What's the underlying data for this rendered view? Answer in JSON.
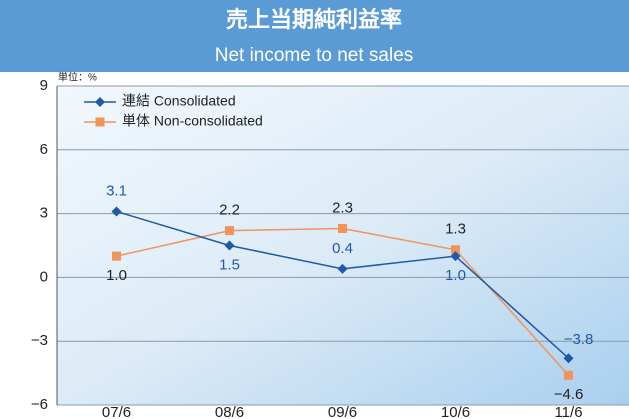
{
  "chart_data": {
    "type": "line",
    "title": "売上当期純利益率",
    "subtitle": "Net income to net sales",
    "unit_label": "単位：%",
    "categories": [
      "07/6",
      "08/6",
      "09/6",
      "10/6",
      "11/6"
    ],
    "series": [
      {
        "name": "連結  Consolidated",
        "color": "#1f5aa6",
        "marker": "diamond",
        "values": [
          3.1,
          1.5,
          0.4,
          1.0,
          -3.8
        ],
        "value_labels": [
          "3.1",
          "1.5",
          "0.4",
          "1.0",
          "−3.8"
        ]
      },
      {
        "name": "単体  Non-consolidated",
        "color": "#f0945a",
        "marker": "square",
        "values": [
          1.0,
          2.2,
          2.3,
          1.3,
          -4.6
        ],
        "value_labels": [
          "1.0",
          "2.2",
          "2.3",
          "1.3",
          "−4.6"
        ]
      }
    ],
    "ylim": [
      -6,
      9
    ],
    "yticks": [
      {
        "value": -6,
        "label": "−6"
      },
      {
        "value": -3,
        "label": "−3"
      },
      0,
      3,
      6,
      9
    ],
    "grid": true,
    "legend": "upper left"
  }
}
